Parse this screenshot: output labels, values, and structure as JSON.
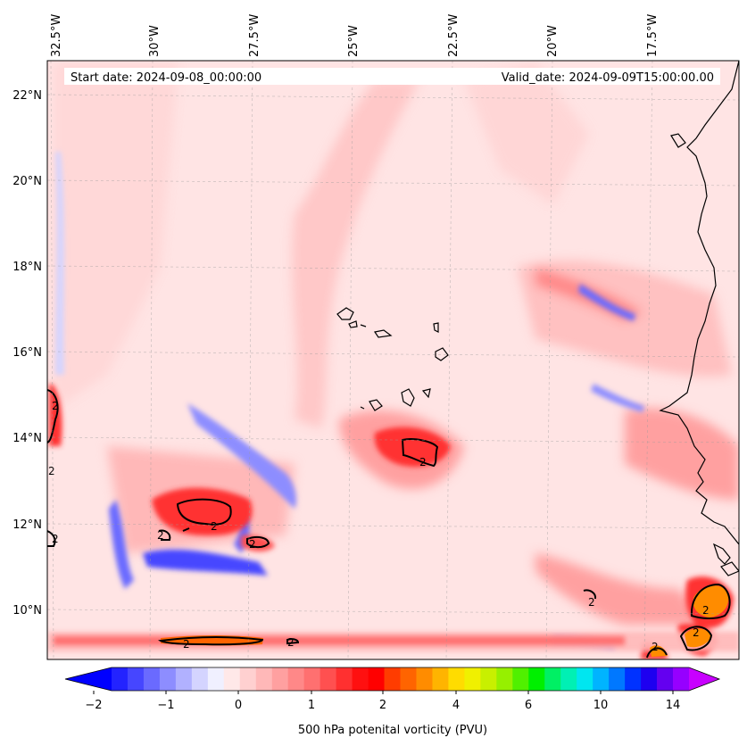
{
  "header": {
    "start_date": "Start date: 2024-09-08_00:00:00",
    "valid_date": "Valid_date: 2024-09-09T15:00:00.00"
  },
  "axes": {
    "lon_labels": [
      "32.5°W",
      "30°W",
      "27.5°W",
      "25°W",
      "22.5°W",
      "20°W",
      "17.5°W"
    ],
    "lat_labels": [
      "22°N",
      "20°N",
      "18°N",
      "16°N",
      "14°N",
      "12°N",
      "10°N"
    ]
  },
  "colorbar": {
    "label": "500 hPa potenital vorticity (PVU)",
    "tick_labels": [
      "−2",
      "−1",
      "0",
      "1",
      "2",
      "4",
      "6",
      "10",
      "14"
    ],
    "colors": [
      "#0000ff",
      "#2323ff",
      "#4646ff",
      "#6a6aff",
      "#8d8dff",
      "#b1b1ff",
      "#d4d4ff",
      "#f0f0ff",
      "#ffe8e8",
      "#ffd0d0",
      "#ffb8b8",
      "#ffa0a0",
      "#ff8888",
      "#ff7070",
      "#ff5050",
      "#ff3030",
      "#ff1010",
      "#ff0000",
      "#ff3c00",
      "#ff6400",
      "#ff8c00",
      "#ffb400",
      "#ffdc00",
      "#f0f000",
      "#c8f000",
      "#96f000",
      "#50f000",
      "#00f000",
      "#00f064",
      "#00f0b4",
      "#00e6f0",
      "#00b4ff",
      "#0078ff",
      "#0032ff",
      "#1e00f0",
      "#6400f0",
      "#9600ff",
      "#c800ff"
    ]
  },
  "contour_labels": [
    "2",
    "2",
    "2",
    "2",
    "2",
    "2",
    "2",
    "2",
    "2",
    "2",
    "2",
    "2",
    "2"
  ]
}
